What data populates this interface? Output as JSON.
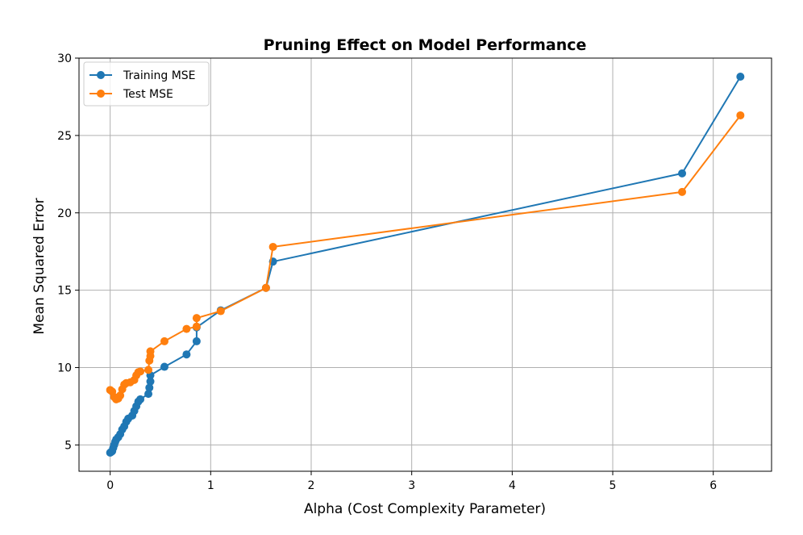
{
  "chart_data": {
    "type": "line",
    "title": "Pruning Effect on Model Performance",
    "xlabel": "Alpha (Cost Complexity Parameter)",
    "ylabel": "Mean Squared Error",
    "xlim": [
      -0.31,
      6.58
    ],
    "ylim": [
      3.3,
      30
    ],
    "xticks": [
      0,
      1,
      2,
      3,
      4,
      5,
      6
    ],
    "yticks": [
      5,
      10,
      15,
      20,
      25,
      30
    ],
    "grid": true,
    "legend_position": "top-left",
    "series": [
      {
        "name": "Training MSE",
        "color": "#1f77b4",
        "x": [
          0.0,
          0.01,
          0.02,
          0.03,
          0.04,
          0.05,
          0.06,
          0.08,
          0.1,
          0.12,
          0.14,
          0.16,
          0.18,
          0.22,
          0.24,
          0.26,
          0.28,
          0.3,
          0.38,
          0.39,
          0.4,
          0.4,
          0.54,
          0.76,
          0.86,
          0.86,
          1.1,
          1.55,
          1.62,
          5.69,
          6.27
        ],
        "y": [
          4.5,
          4.55,
          4.6,
          4.8,
          5.0,
          5.2,
          5.35,
          5.5,
          5.7,
          6.0,
          6.2,
          6.5,
          6.7,
          6.9,
          7.2,
          7.5,
          7.8,
          7.95,
          8.3,
          8.7,
          9.1,
          9.5,
          10.05,
          10.85,
          11.7,
          12.6,
          13.7,
          15.15,
          16.85,
          22.55,
          28.8
        ]
      },
      {
        "name": "Test MSE",
        "color": "#ff7f0e",
        "x": [
          0.0,
          0.02,
          0.04,
          0.06,
          0.08,
          0.1,
          0.12,
          0.14,
          0.16,
          0.2,
          0.24,
          0.26,
          0.28,
          0.3,
          0.38,
          0.39,
          0.4,
          0.4,
          0.54,
          0.76,
          0.86,
          0.86,
          1.1,
          1.55,
          1.62,
          5.69,
          6.27
        ],
        "y": [
          8.55,
          8.45,
          8.1,
          7.95,
          8.0,
          8.2,
          8.6,
          8.9,
          9.0,
          9.05,
          9.2,
          9.5,
          9.7,
          9.75,
          9.85,
          10.45,
          10.75,
          11.05,
          11.7,
          12.5,
          12.65,
          13.2,
          13.65,
          15.15,
          17.8,
          21.35,
          26.3
        ]
      }
    ]
  }
}
